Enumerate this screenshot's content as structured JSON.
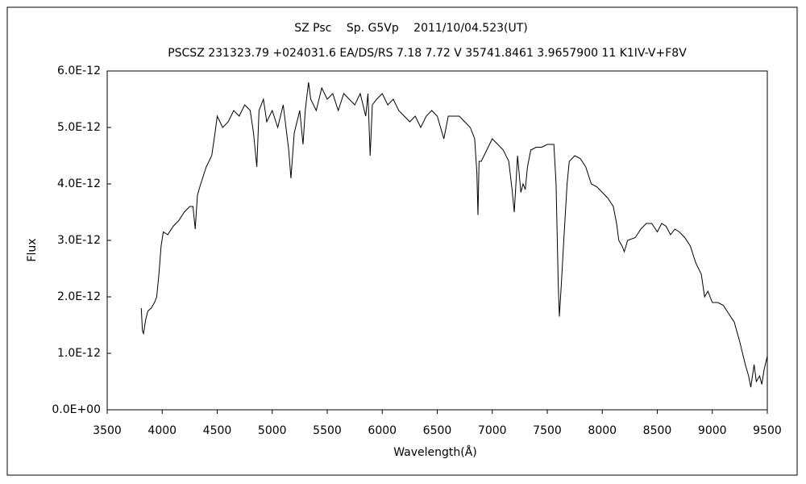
{
  "chart_data": {
    "type": "line",
    "title": "SZ Psc　 Sp. G5Vp　 2011/10/04.523(UT)",
    "subtitle": "PSCSZ 231323.79 +024031.6 EA/DS/RS 7.18 7.72 V 35741.8461 3.9657900 11 K1IV-V+F8V",
    "x_label": "Wavelength(Å)",
    "y_label": "Flux",
    "xlim": [
      3500,
      9500
    ],
    "xticks": [
      3500,
      4000,
      4500,
      5000,
      5500,
      6000,
      6500,
      7000,
      7500,
      8000,
      8500,
      9000,
      9500
    ],
    "ylim": [
      0,
      6e-12
    ],
    "yticks": [
      {
        "value": 0,
        "label": "0.0E+00"
      },
      {
        "value": 1e-12,
        "label": "1.0E-12"
      },
      {
        "value": 2e-12,
        "label": "2.0E-12"
      },
      {
        "value": 3e-12,
        "label": "3.0E-12"
      },
      {
        "value": 4e-12,
        "label": "4.0E-12"
      },
      {
        "value": 5e-12,
        "label": "5.0E-12"
      },
      {
        "value": 6e-12,
        "label": "6.0E-12"
      }
    ],
    "grid": false,
    "series": [
      {
        "color": "#000000",
        "x": [
          3810,
          3820,
          3830,
          3850,
          3870,
          3900,
          3930,
          3950,
          3970,
          3990,
          4010,
          4050,
          4100,
          4150,
          4200,
          4250,
          4280,
          4300,
          4320,
          4350,
          4400,
          4450,
          4480,
          4500,
          4550,
          4600,
          4650,
          4700,
          4750,
          4800,
          4830,
          4860,
          4880,
          4920,
          4950,
          5000,
          5050,
          5100,
          5150,
          5170,
          5200,
          5250,
          5280,
          5300,
          5330,
          5350,
          5400,
          5450,
          5500,
          5550,
          5600,
          5650,
          5700,
          5750,
          5800,
          5850,
          5870,
          5890,
          5910,
          5950,
          6000,
          6050,
          6100,
          6150,
          6200,
          6250,
          6300,
          6350,
          6400,
          6450,
          6500,
          6560,
          6600,
          6650,
          6700,
          6750,
          6800,
          6840,
          6860,
          6870,
          6880,
          6900,
          6950,
          7000,
          7050,
          7100,
          7150,
          7180,
          7200,
          7230,
          7260,
          7280,
          7300,
          7320,
          7350,
          7400,
          7450,
          7500,
          7560,
          7580,
          7600,
          7610,
          7630,
          7650,
          7680,
          7700,
          7750,
          7800,
          7850,
          7900,
          7950,
          8000,
          8050,
          8100,
          8130,
          8150,
          8180,
          8200,
          8230,
          8300,
          8350,
          8400,
          8450,
          8500,
          8540,
          8580,
          8620,
          8660,
          8700,
          8750,
          8800,
          8850,
          8900,
          8930,
          8960,
          9000,
          9050,
          9100,
          9150,
          9200,
          9250,
          9300,
          9330,
          9350,
          9380,
          9400,
          9430,
          9450,
          9470,
          9500
        ],
        "values": [
          1.8e-12,
          1.4e-12,
          1.35e-12,
          1.6e-12,
          1.75e-12,
          1.8e-12,
          1.9e-12,
          2e-12,
          2.4e-12,
          2.9e-12,
          3.15e-12,
          3.1e-12,
          3.25e-12,
          3.35e-12,
          3.5e-12,
          3.6e-12,
          3.6e-12,
          3.2e-12,
          3.8e-12,
          4e-12,
          4.3e-12,
          4.5e-12,
          4.9e-12,
          5.2e-12,
          5e-12,
          5.1e-12,
          5.3e-12,
          5.2e-12,
          5.4e-12,
          5.3e-12,
          4.9e-12,
          4.3e-12,
          5.3e-12,
          5.5e-12,
          5.1e-12,
          5.3e-12,
          5e-12,
          5.4e-12,
          4.6e-12,
          4.1e-12,
          4.9e-12,
          5.3e-12,
          4.7e-12,
          5.3e-12,
          5.8e-12,
          5.5e-12,
          5.3e-12,
          5.7e-12,
          5.5e-12,
          5.6e-12,
          5.3e-12,
          5.6e-12,
          5.5e-12,
          5.4e-12,
          5.6e-12,
          5.2e-12,
          5.6e-12,
          4.5e-12,
          5.4e-12,
          5.5e-12,
          5.6e-12,
          5.4e-12,
          5.5e-12,
          5.3e-12,
          5.2e-12,
          5.1e-12,
          5.2e-12,
          5e-12,
          5.2e-12,
          5.3e-12,
          5.2e-12,
          4.8e-12,
          5.2e-12,
          5.2e-12,
          5.2e-12,
          5.1e-12,
          5e-12,
          4.8e-12,
          4.2e-12,
          3.45e-12,
          4.4e-12,
          4.4e-12,
          4.6e-12,
          4.8e-12,
          4.7e-12,
          4.6e-12,
          4.4e-12,
          3.9e-12,
          3.5e-12,
          4.5e-12,
          3.85e-12,
          4e-12,
          3.9e-12,
          4.3e-12,
          4.6e-12,
          4.65e-12,
          4.65e-12,
          4.7e-12,
          4.7e-12,
          4e-12,
          2.2e-12,
          1.65e-12,
          2.3e-12,
          3e-12,
          4e-12,
          4.4e-12,
          4.5e-12,
          4.45e-12,
          4.3e-12,
          4e-12,
          3.95e-12,
          3.85e-12,
          3.75e-12,
          3.6e-12,
          3.3e-12,
          3e-12,
          2.9e-12,
          2.8e-12,
          3e-12,
          3.05e-12,
          3.2e-12,
          3.3e-12,
          3.3e-12,
          3.15e-12,
          3.3e-12,
          3.25e-12,
          3.1e-12,
          3.2e-12,
          3.15e-12,
          3.05e-12,
          2.9e-12,
          2.6e-12,
          2.4e-12,
          2e-12,
          2.1e-12,
          1.9e-12,
          1.9e-12,
          1.85e-12,
          1.7e-12,
          1.55e-12,
          1.2e-12,
          8e-13,
          6e-13,
          4e-13,
          8e-13,
          5e-13,
          6e-13,
          4.5e-13,
          7e-13,
          9.5e-13
        ]
      }
    ]
  }
}
